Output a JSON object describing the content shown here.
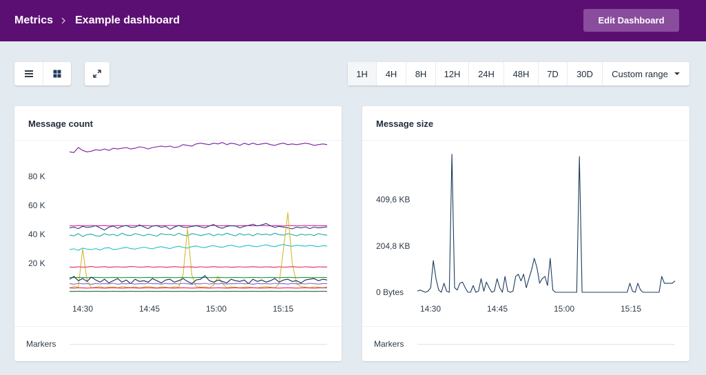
{
  "header": {
    "breadcrumb_root": "Metrics",
    "breadcrumb_current": "Example dashboard",
    "edit_button": "Edit Dashboard",
    "bg_color": "#5c0f73"
  },
  "toolbar": {
    "view_icons": [
      "list-view-icon",
      "grid-view-icon"
    ],
    "fullscreen_icon": "expand-icon",
    "ranges": [
      "1H",
      "4H",
      "8H",
      "12H",
      "24H",
      "48H",
      "7D",
      "30D"
    ],
    "active_range": "1H",
    "custom_range": "Custom range"
  },
  "panels": [
    {
      "title": "Message count",
      "markers_label": "Markers",
      "chart_data": {
        "type": "line",
        "x_ticks": [
          "14:30",
          "14:45",
          "15:00",
          "15:15"
        ],
        "y_ticks": [
          "20 K",
          "40 K",
          "60 K",
          "80 K"
        ],
        "ylim": [
          0,
          100000
        ],
        "grid": false,
        "series": [
          {
            "color": "#7a1fa2",
            "values": [
              97000,
              96500,
              100000,
              98000,
              97000,
              97500,
              98500,
              98000,
              99000,
              98000,
              99500,
              99000,
              99500,
              100000,
              99000,
              99500,
              100500,
              100000,
              99000,
              100000,
              100500,
              101000,
              100500,
              101000,
              100000,
              100500,
              102000,
              101500,
              101000,
              102500,
              103000,
              102500,
              102000,
              103000,
              102500,
              103500,
              102000,
              103000,
              102500,
              101500,
              103000,
              102000,
              103000,
              102000,
              102500,
              103000,
              102000,
              101500,
              102500,
              103000,
              102000,
              102500,
              102000,
              102500,
              103000,
              102500,
              101500,
              102000,
              102500,
              102000
            ]
          },
          {
            "color": "#e91e8c",
            "values": [
              46000,
              45800,
              46100,
              45900,
              46000,
              46200,
              45900,
              46000,
              46100,
              45800,
              46000,
              46100,
              45900,
              46000,
              46200,
              46000,
              45900,
              46100,
              46000,
              45800,
              46100,
              46000,
              46000,
              46200,
              45900,
              46000,
              46100,
              46000,
              45800,
              46100,
              46000,
              45900,
              46000,
              46200,
              46000,
              45900,
              46100,
              46000,
              45800,
              46000,
              46100,
              46000,
              45900,
              46000,
              46200,
              46000,
              45900,
              46100,
              46000,
              45800,
              46100,
              46000,
              45900,
              46000,
              46200,
              46000,
              46100,
              45900,
              46000,
              46000
            ]
          },
          {
            "color": "#1e3a8a",
            "values": [
              44500,
              45000,
              44000,
              45500,
              44800,
              45200,
              46000,
              44500,
              43000,
              45000,
              45800,
              44200,
              45500,
              46200,
              44800,
              45000,
              46500,
              45200,
              44000,
              45800,
              46000,
              44800,
              45500,
              43500,
              45000,
              46200,
              45000,
              44800,
              45500,
              46000,
              45200,
              44500,
              45800,
              46800,
              45000,
              44200,
              45500,
              46000,
              45800,
              44500,
              45500,
              46200,
              47000,
              45800,
              46500,
              47500,
              46000,
              44800,
              45500,
              45000,
              44500,
              43800,
              45000,
              44500,
              45200,
              44000,
              45000,
              44500,
              44800,
              45200
            ]
          },
          {
            "color": "#1aa9a0",
            "values": [
              39500,
              39000,
              40500,
              38500,
              39800,
              40200,
              39000,
              38800,
              40500,
              39500,
              40000,
              39000,
              40800,
              39500,
              39200,
              40500,
              39800,
              39000,
              40200,
              39500,
              38800,
              40500,
              39800,
              40000,
              39200,
              40800,
              39500,
              39000,
              40500,
              40000,
              39200,
              39800,
              40500,
              39000,
              40200,
              39500,
              40800,
              39800,
              39000,
              40500,
              39500,
              40200,
              39000,
              40500,
              39800,
              40200,
              39500,
              40800,
              39800,
              39500,
              40500,
              39800,
              39000,
              40200,
              39500,
              40000,
              39200,
              40500,
              39800,
              39500
            ]
          },
          {
            "color": "#20c0c6",
            "values": [
              29500,
              30000,
              29000,
              30500,
              29800,
              29500,
              30200,
              29200,
              30500,
              30800,
              29500,
              29800,
              30500,
              31000,
              30200,
              29800,
              30500,
              31200,
              30500,
              30000,
              31000,
              31500,
              30800,
              30200,
              31200,
              31800,
              31000,
              30500,
              31500,
              32000,
              31200,
              30800,
              31800,
              32200,
              31500,
              31000,
              32000,
              32500,
              31800,
              31200,
              32000,
              32500,
              31800,
              31500,
              32200,
              32800,
              32000,
              31500,
              32500,
              33000,
              32200,
              31800,
              32500,
              32200,
              31800,
              32500,
              32000,
              31500,
              32200,
              32000
            ]
          },
          {
            "color": "#d4b830",
            "values": [
              3000,
              4000,
              3500,
              30000,
              8000,
              3000,
              3500,
              4000,
              3000,
              3500,
              3800,
              3000,
              4000,
              3500,
              3200,
              3800,
              3000,
              3500,
              4000,
              3500,
              3000,
              3800,
              3500,
              3000,
              3800,
              3500,
              12000,
              44000,
              12000,
              4000,
              3500,
              3800,
              3000,
              5000,
              11000,
              6000,
              3000,
              3800,
              3500,
              3000,
              3500,
              3800,
              3200,
              3000,
              3500,
              4000,
              3500,
              3000,
              6000,
              30000,
              55000,
              20000,
              6000,
              4000,
              3500,
              3000,
              3800,
              3500,
              3000,
              4000
            ]
          },
          {
            "color": "#e0245e",
            "values": [
              17500,
              17300,
              17600,
              17400,
              17500,
              17800,
              17400,
              17500,
              17700,
              17300,
              17500,
              17600,
              17400,
              17500,
              17800,
              17600,
              17400,
              17500,
              17700,
              17400,
              17500,
              17600,
              17300,
              17500,
              17700,
              17500,
              17400,
              17600,
              17500,
              17300,
              17600,
              17400,
              17500,
              17700,
              17500,
              17400,
              17600,
              17300,
              17500,
              17600,
              17400,
              17500,
              17700,
              17500,
              17400,
              17600,
              17500,
              17300,
              17600,
              17400,
              17500,
              17700,
              17500,
              17400,
              17600,
              17500,
              17300,
              17600,
              17500,
              17500
            ]
          },
          {
            "color": "#1a9e38",
            "values": [
              10200,
              10100,
              10300,
              10200,
              10100,
              10200,
              10300,
              10200,
              10100,
              10200,
              10300,
              10200,
              10100,
              10200,
              10300,
              10200,
              10100,
              10200,
              10300,
              10200,
              10100,
              10200,
              10300,
              10200,
              10100,
              10200,
              10300,
              10200,
              10100,
              10200,
              10300,
              10200,
              10100,
              10200,
              10300,
              10200,
              10100,
              10200,
              10300,
              10200,
              10100,
              10200,
              10300,
              10200,
              10100,
              10200,
              10300,
              10200,
              10100,
              10200,
              10300,
              10200,
              10100,
              10200,
              10300,
              10200,
              10100,
              10200,
              10300,
              10200
            ]
          },
          {
            "color": "#142c52",
            "values": [
              9000,
              11000,
              8000,
              9500,
              7500,
              10500,
              8500,
              7000,
              9000,
              6500,
              8000,
              9500,
              7000,
              8500,
              6000,
              9000,
              7500,
              8000,
              7000,
              9500,
              8000,
              6500,
              8500,
              9000,
              7000,
              8000,
              9500,
              7500,
              6000,
              8500,
              9000,
              11500,
              8000,
              7000,
              8500,
              7500,
              6500,
              9000,
              8000,
              7500,
              8500,
              6000,
              9000,
              7500,
              8500,
              7000,
              8000,
              9500,
              7000,
              8500,
              9000,
              7500,
              8000,
              6500,
              8500,
              9000,
              9500,
              8000,
              9000,
              8500
            ]
          },
          {
            "color": "#8b62c9",
            "values": [
              6000,
              5500,
              6200,
              5800,
              6000,
              5500,
              6100,
              5700,
              6000,
              5800,
              6200,
              5500,
              6000,
              5800,
              6100,
              5600,
              6000,
              5800,
              6200,
              5900,
              6000,
              5600,
              6100,
              5800,
              6000,
              5700,
              6200,
              5900,
              5500,
              6000,
              5800,
              6200,
              5700,
              6000,
              5800,
              6100,
              5600,
              6000,
              5900,
              6200,
              5800,
              6000,
              5500,
              6100,
              5800,
              6000,
              5700,
              6200,
              5900,
              6000,
              5600,
              6100,
              5800,
              6000,
              5700,
              6200,
              5900,
              5600,
              6000,
              6000
            ]
          },
          {
            "color": "#e0245e",
            "values": [
              3000,
              2900,
              3100,
              3000,
              2900,
              3000,
              3100,
              3000,
              2900,
              3000,
              3100,
              3000,
              2900,
              3000,
              3100,
              3000,
              2900,
              3000,
              3100,
              3000,
              2900,
              3000,
              3100,
              3000,
              2900,
              3000,
              3100,
              3000,
              2900,
              3000,
              3100,
              3000,
              2900,
              3000,
              3100,
              3000,
              2900,
              3000,
              3100,
              3000,
              2900,
              3000,
              3100,
              3000,
              2900,
              3000,
              3100,
              3000,
              2900,
              3000,
              3100,
              3000,
              2900,
              3000,
              3100,
              3000,
              2900,
              3000,
              3100,
              3000
            ]
          },
          {
            "color": "#1a6b2e",
            "values": [
              600,
              600,
              700,
              600,
              600,
              600,
              700,
              600,
              600,
              600,
              700,
              600,
              600,
              600,
              700,
              600,
              600,
              600,
              700,
              600,
              600,
              600,
              700,
              600,
              600,
              600,
              700,
              600,
              600,
              600,
              700,
              600,
              600,
              600,
              700,
              600,
              600,
              600,
              700,
              600,
              600,
              600,
              700,
              600,
              600,
              600,
              700,
              600,
              600,
              600,
              700,
              600,
              600,
              600,
              700,
              600,
              600,
              600,
              700,
              600
            ]
          }
        ]
      }
    },
    {
      "title": "Message size",
      "markers_label": "Markers",
      "chart_data": {
        "type": "line",
        "x_ticks": [
          "14:30",
          "14:45",
          "15:00",
          "15:15"
        ],
        "y_ticks": [
          "0 Bytes",
          "204,8 KB",
          "409,6 KB"
        ],
        "y_tick_values": [
          0,
          204.8,
          409.6
        ],
        "y_unit": "KB",
        "ylim": [
          0,
          640
        ],
        "grid": false,
        "series": [
          {
            "color": "#1b3a5c",
            "values": [
              5,
              10,
              5,
              0,
              5,
              20,
              140,
              60,
              10,
              0,
              40,
              5,
              0,
              610,
              20,
              10,
              40,
              45,
              20,
              0,
              0,
              30,
              0,
              5,
              60,
              5,
              45,
              20,
              0,
              5,
              60,
              20,
              0,
              70,
              5,
              0,
              5,
              70,
              80,
              50,
              80,
              20,
              60,
              100,
              150,
              110,
              40,
              60,
              70,
              30,
              150,
              10,
              0,
              0,
              0,
              0,
              0,
              0,
              0,
              0,
              0,
              600,
              0,
              0,
              0,
              0,
              0,
              0,
              0,
              0,
              0,
              0,
              0,
              0,
              0,
              0,
              0,
              0,
              0,
              0,
              40,
              5,
              0,
              40,
              10,
              0,
              0,
              0,
              0,
              0,
              0,
              0,
              70,
              40,
              40,
              40,
              40,
              50
            ]
          }
        ]
      }
    }
  ]
}
